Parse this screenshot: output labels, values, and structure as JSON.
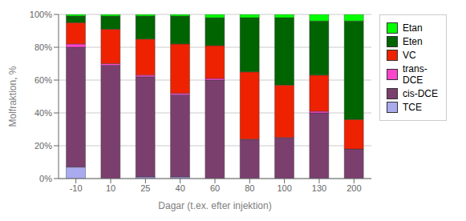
{
  "chart_data": {
    "type": "bar",
    "stacked": true,
    "xlabel": "Dagar (t.ex. efter injektion)",
    "ylabel": "Molfraktion, %",
    "categories": [
      "-10",
      "10",
      "25",
      "40",
      "60",
      "80",
      "100",
      "130",
      "200"
    ],
    "series": [
      {
        "name": "TCE",
        "color": "#aaaaee",
        "values": [
          7,
          0,
          1,
          1,
          0,
          0,
          0,
          0,
          0
        ]
      },
      {
        "name": "cis-DCE",
        "color": "#7b3f6e",
        "values": [
          73,
          69,
          61,
          50,
          60,
          24,
          25,
          40,
          18
        ]
      },
      {
        "name": "trans-DCE",
        "color": "#ff44cc",
        "values": [
          2,
          1,
          1,
          1,
          1,
          0,
          0,
          1,
          0
        ]
      },
      {
        "name": "VC",
        "color": "#ee2200",
        "values": [
          13,
          21,
          22,
          30,
          20,
          41,
          32,
          22,
          18
        ]
      },
      {
        "name": "Eten",
        "color": "#006400",
        "values": [
          4,
          8,
          14,
          17,
          17,
          33,
          41,
          33,
          60
        ]
      },
      {
        "name": "Etan",
        "color": "#00ff00",
        "values": [
          1,
          1,
          1,
          1,
          2,
          2,
          2,
          4,
          4
        ]
      }
    ],
    "ylim": [
      0,
      100
    ],
    "yticks": [
      {
        "value": 0,
        "label": "0%"
      },
      {
        "value": 20,
        "label": "20%"
      },
      {
        "value": 40,
        "label": "40%"
      },
      {
        "value": 60,
        "label": "60%"
      },
      {
        "value": 80,
        "label": "80%"
      },
      {
        "value": 100,
        "label": "100%"
      }
    ],
    "grid": true,
    "legend": "right"
  }
}
